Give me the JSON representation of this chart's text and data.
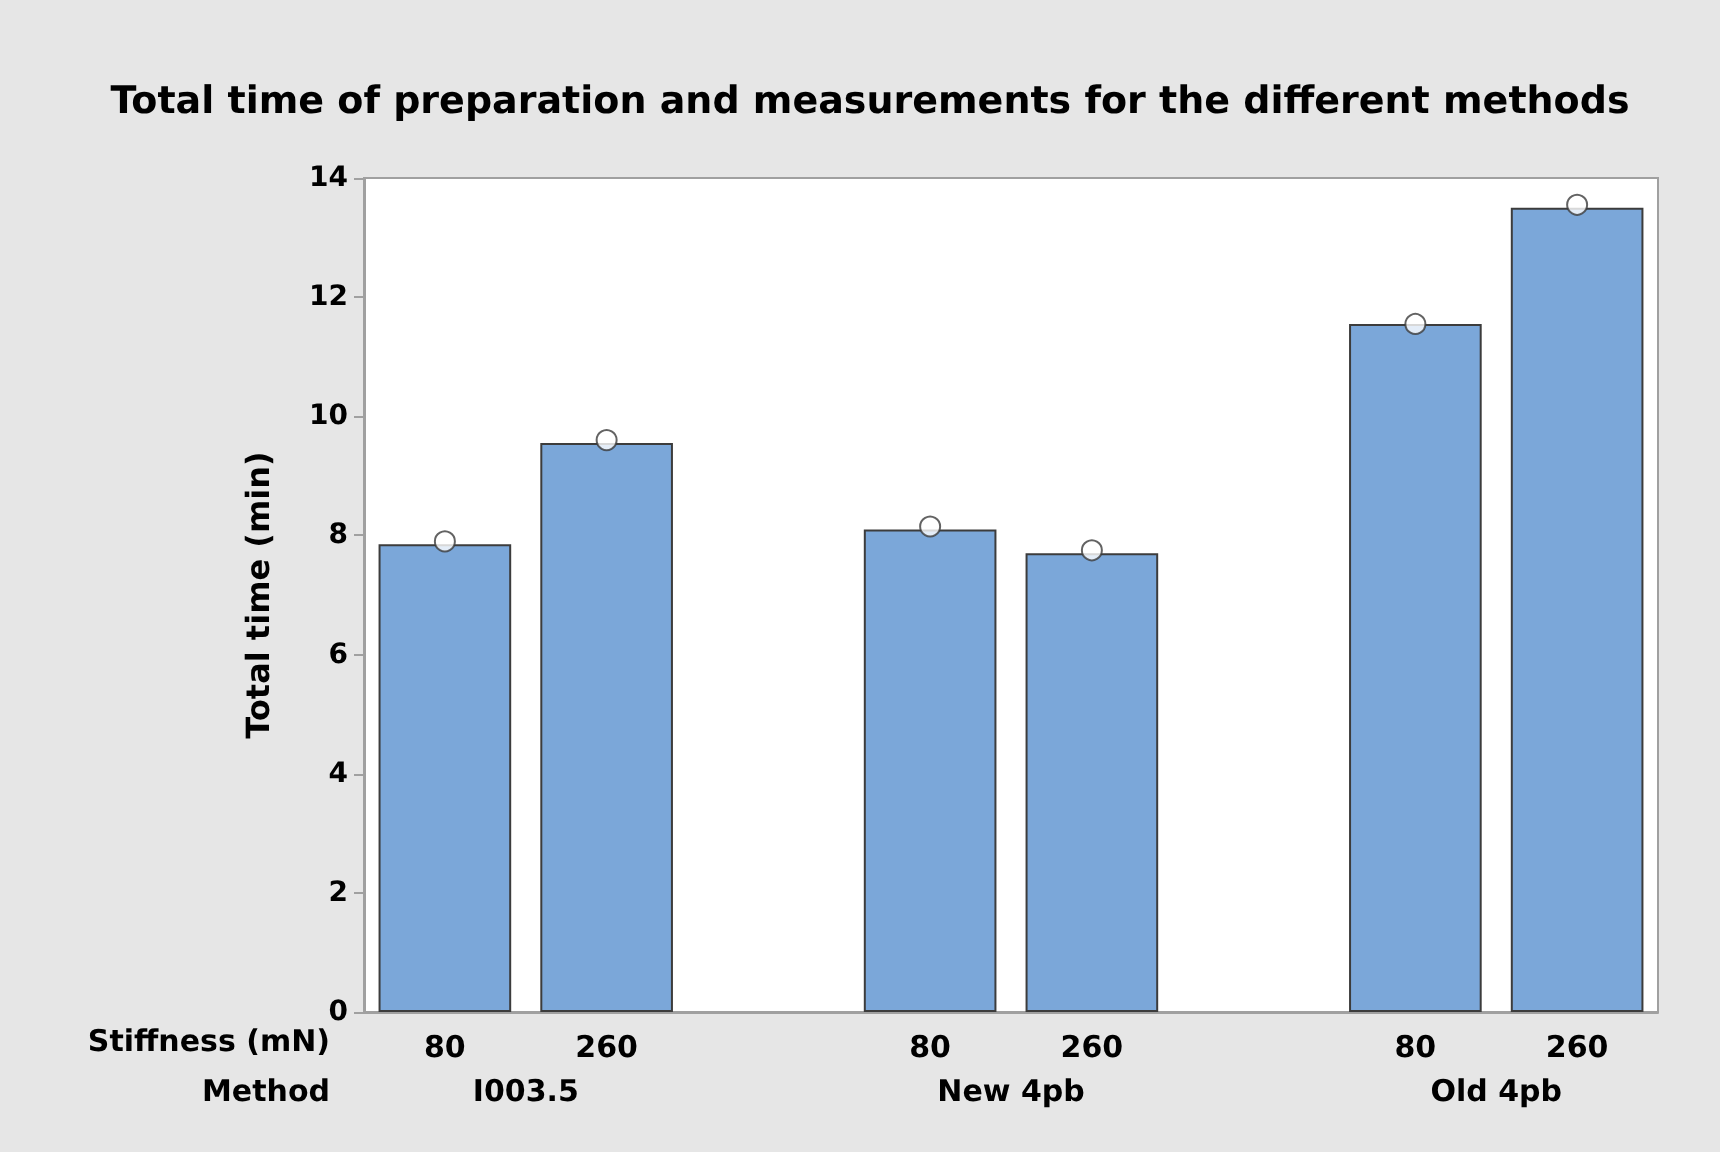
{
  "chart_data": {
    "type": "bar",
    "title": "Total time of preparation and measurements for the different methods",
    "ylabel": "Total time (min)",
    "categories": [
      "80",
      "260",
      "80",
      "260",
      "80",
      "260"
    ],
    "series": [
      {
        "color": "#7ba7d9",
        "values": [
          7.85,
          9.55,
          8.1,
          7.7,
          11.55,
          13.5
        ]
      },
      {
        "type": "scatter",
        "color": "#ffffff",
        "values": [
          7.9,
          9.6,
          8.15,
          7.75,
          11.55,
          13.55
        ]
      }
    ],
    "ylim": [
      0,
      14
    ],
    "yticks": [
      0,
      2,
      4,
      6,
      8,
      10,
      12,
      14
    ],
    "grid": false,
    "marker": "circle",
    "annotations": [
      "Stiffness (mN)",
      "Method",
      "I003.5",
      "New 4pb",
      "Old 4pb"
    ]
  }
}
